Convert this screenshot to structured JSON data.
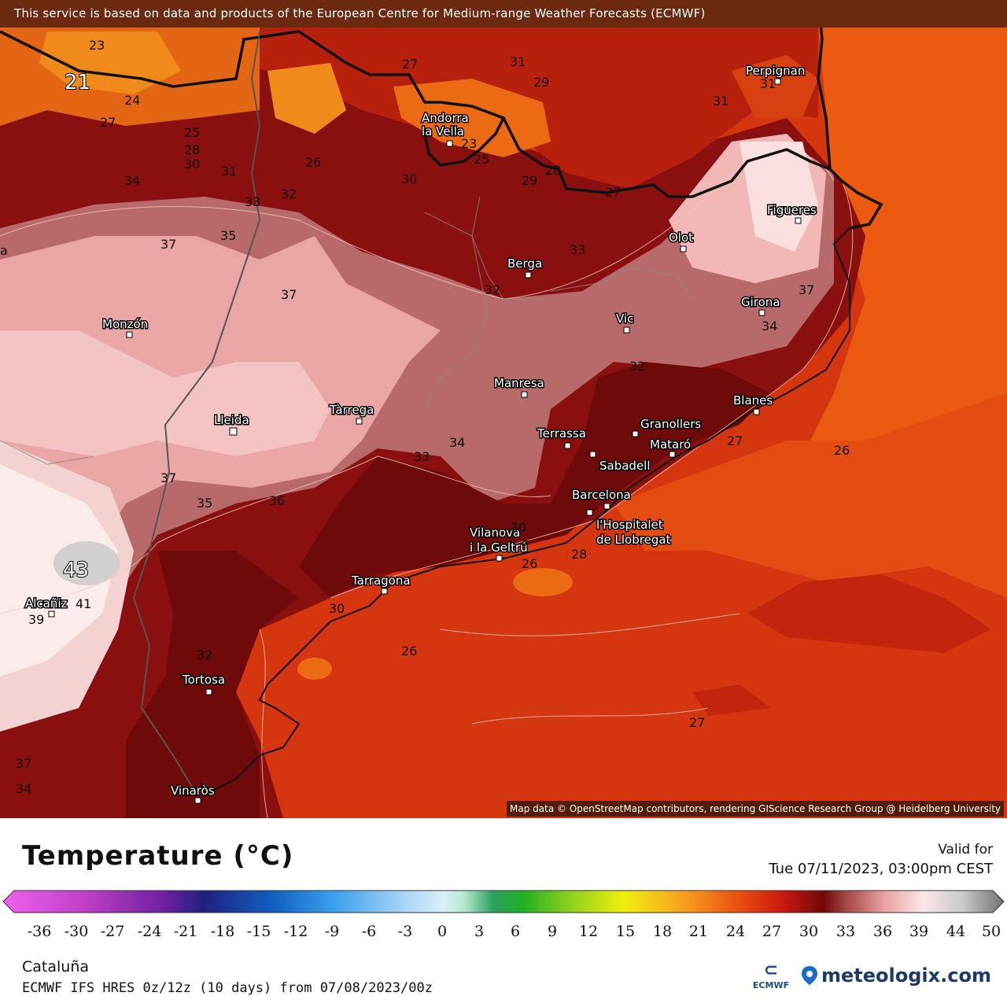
{
  "header": {
    "credit": "This service is based on data and products of the European Centre for Medium-range Weather Forecasts (ECMWF)"
  },
  "map": {
    "attribution": "Map data © OpenStreetMap contributors, rendering GIScience Research Group @ Heidelberg University",
    "cities": [
      {
        "name": "Perpignan"
      },
      {
        "name": "Andorra"
      },
      {
        "name": "la Vella"
      },
      {
        "name": "Figueres"
      },
      {
        "name": "Olot"
      },
      {
        "name": "Berga"
      },
      {
        "name": "Girona"
      },
      {
        "name": "Monzón"
      },
      {
        "name": "Vic"
      },
      {
        "name": "Manresa"
      },
      {
        "name": "Tàrrega"
      },
      {
        "name": "Lleida"
      },
      {
        "name": "Blanes"
      },
      {
        "name": "Terrassa"
      },
      {
        "name": "Granollers"
      },
      {
        "name": "Mataró"
      },
      {
        "name": "Sabadell"
      },
      {
        "name": "Barcelona"
      },
      {
        "name": "l'Hospitalet"
      },
      {
        "name": "de Llobregat"
      },
      {
        "name": "Vilanova"
      },
      {
        "name": "i la Geltrú"
      },
      {
        "name": "Tarragona"
      },
      {
        "name": "Alcañiz"
      },
      {
        "name": "Tortosa"
      },
      {
        "name": "Vinaròs"
      }
    ],
    "contour_labels": [
      "23",
      "21",
      "24",
      "27",
      "25",
      "28",
      "30",
      "34",
      "31",
      "33",
      "32",
      "26",
      "27",
      "31",
      "29",
      "30",
      "29",
      "28",
      "31",
      "31",
      "27",
      "33",
      "35",
      "37",
      "37",
      "37",
      "32",
      "34",
      "32",
      "27",
      "26",
      "34",
      "33",
      "37",
      "35",
      "36",
      "30",
      "26",
      "28",
      "43",
      "41",
      "39",
      "30",
      "26",
      "32",
      "27",
      "37",
      "34",
      "23",
      "25"
    ],
    "region_label": "a"
  },
  "legend": {
    "title": "Temperature (°C)",
    "valid_label": "Valid for",
    "valid_time": "Tue 07/11/2023, 03:00pm CEST",
    "ticks": [
      "-36",
      "-30",
      "-27",
      "-24",
      "-21",
      "-18",
      "-15",
      "-12",
      "-9",
      "-6",
      "-3",
      "0",
      "3",
      "6",
      "9",
      "12",
      "15",
      "18",
      "21",
      "24",
      "27",
      "30",
      "33",
      "36",
      "39",
      "44",
      "50"
    ],
    "region": "Cataluña",
    "model": "ECMWF IFS HRES 0z/12z (10 days) from 07/08/2023/00z",
    "ecmwf_logo_text": "ECMWF",
    "brand": "meteologix.com"
  }
}
